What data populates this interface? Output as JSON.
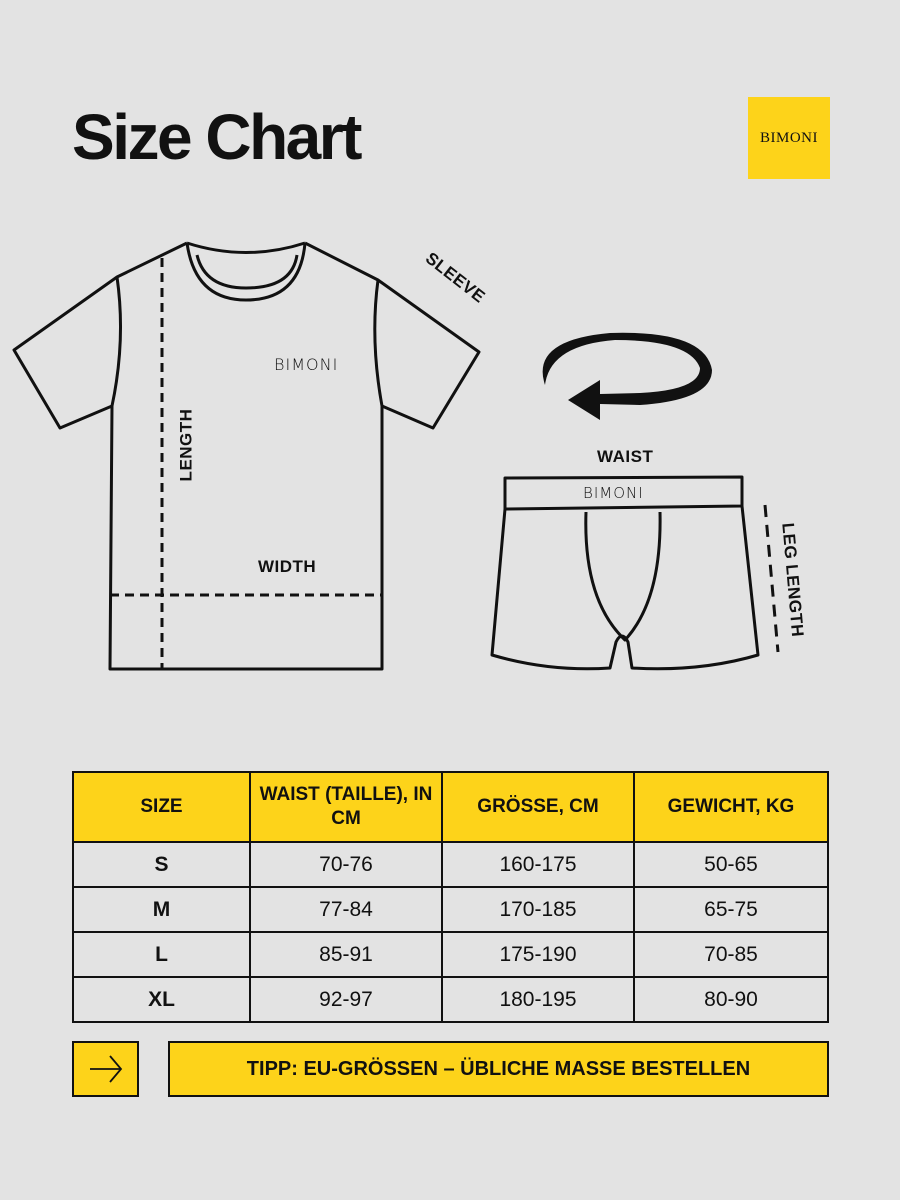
{
  "title": "Size Chart",
  "brand": "BIMONI",
  "colors": {
    "accent": "#fdd31a",
    "background": "#e3e3e3",
    "ink": "#111111"
  },
  "shirt_labels": {
    "sleeve": "SLEEVE",
    "length": "LENGTH",
    "width": "WIDTH",
    "brand": "BIMONI"
  },
  "shorts_labels": {
    "waist": "WAIST",
    "leg_length": "LEG LENGTH",
    "brand": "BIMONI"
  },
  "table": {
    "headers": [
      "SIZE",
      "WAIST (TAILLE), IN CM",
      "GRÖSSE, CM",
      "GEWICHT, KG"
    ],
    "rows": [
      [
        "S",
        "70-76",
        "160-175",
        "50-65"
      ],
      [
        "M",
        "77-84",
        "170-185",
        "65-75"
      ],
      [
        "L",
        "85-91",
        "175-190",
        "70-85"
      ],
      [
        "XL",
        "92-97",
        "180-195",
        "80-90"
      ]
    ]
  },
  "tip": {
    "icon": "arrow-right-icon",
    "text": "TIPP: EU-GRÖSSEN – ÜBLICHE MASSE BESTELLEN"
  }
}
